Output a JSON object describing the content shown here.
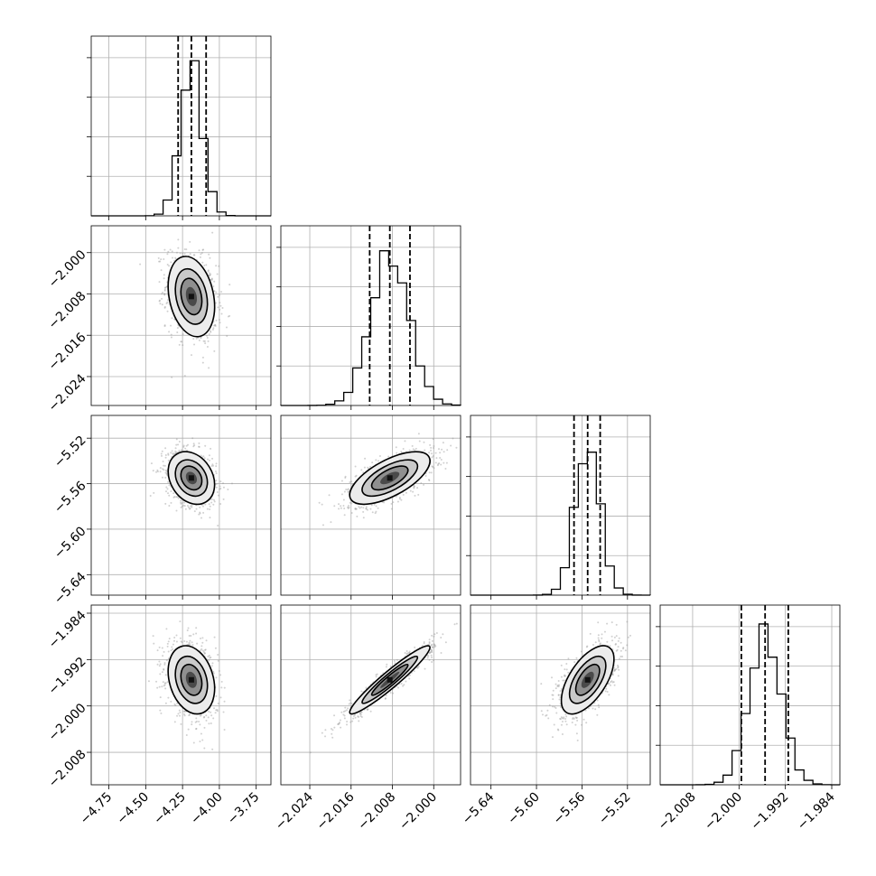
{
  "chart_data": {
    "type": "corner",
    "grid": true,
    "params": [
      {
        "name": "",
        "range": [
          -4.87,
          -3.65
        ],
        "ticks": [
          "−4.75",
          "−4.50",
          "−4.25",
          "−4.00",
          "−3.75"
        ],
        "tick_values": [
          -4.75,
          -4.5,
          -4.25,
          -4.0,
          -3.75
        ],
        "center": -4.19,
        "sigma": 0.075,
        "quantiles": [
          -4.28,
          -4.19,
          -4.09
        ]
      },
      {
        "name": "",
        "range": [
          -2.0296,
          -1.9948
        ],
        "ticks": [
          "−2.024",
          "−2.016",
          "−2.008",
          "−2.000"
        ],
        "tick_values": [
          -2.024,
          -2.016,
          -2.008,
          -2.0
        ],
        "center": -2.0085,
        "sigma": 0.0037,
        "quantiles": [
          -2.0124,
          -2.0085,
          -2.0046
        ]
      },
      {
        "name": "",
        "range": [
          -5.658,
          -5.5
        ],
        "ticks": [
          "−5.64",
          "−5.60",
          "−5.56",
          "−5.52"
        ],
        "tick_values": [
          -5.64,
          -5.6,
          -5.56,
          -5.52
        ],
        "center": -5.555,
        "sigma": 0.011,
        "quantiles": [
          -5.567,
          -5.555,
          -5.544
        ]
      },
      {
        "name": "",
        "range": [
          -2.0136,
          -1.9826
        ],
        "ticks": [
          "−2.008",
          "−2.000",
          "−1.992",
          "−1.984"
        ],
        "tick_values": [
          -2.008,
          -2.0,
          -1.992,
          -1.984
        ],
        "center": -1.9955,
        "sigma": 0.0028,
        "quantiles": [
          -1.9996,
          -1.9955,
          -1.9915
        ]
      }
    ],
    "correlations": {
      "1_0": -0.25,
      "2_0": -0.25,
      "2_1": 0.65,
      "3_0": -0.25,
      "3_1": 0.95,
      "3_2": 0.6
    }
  }
}
